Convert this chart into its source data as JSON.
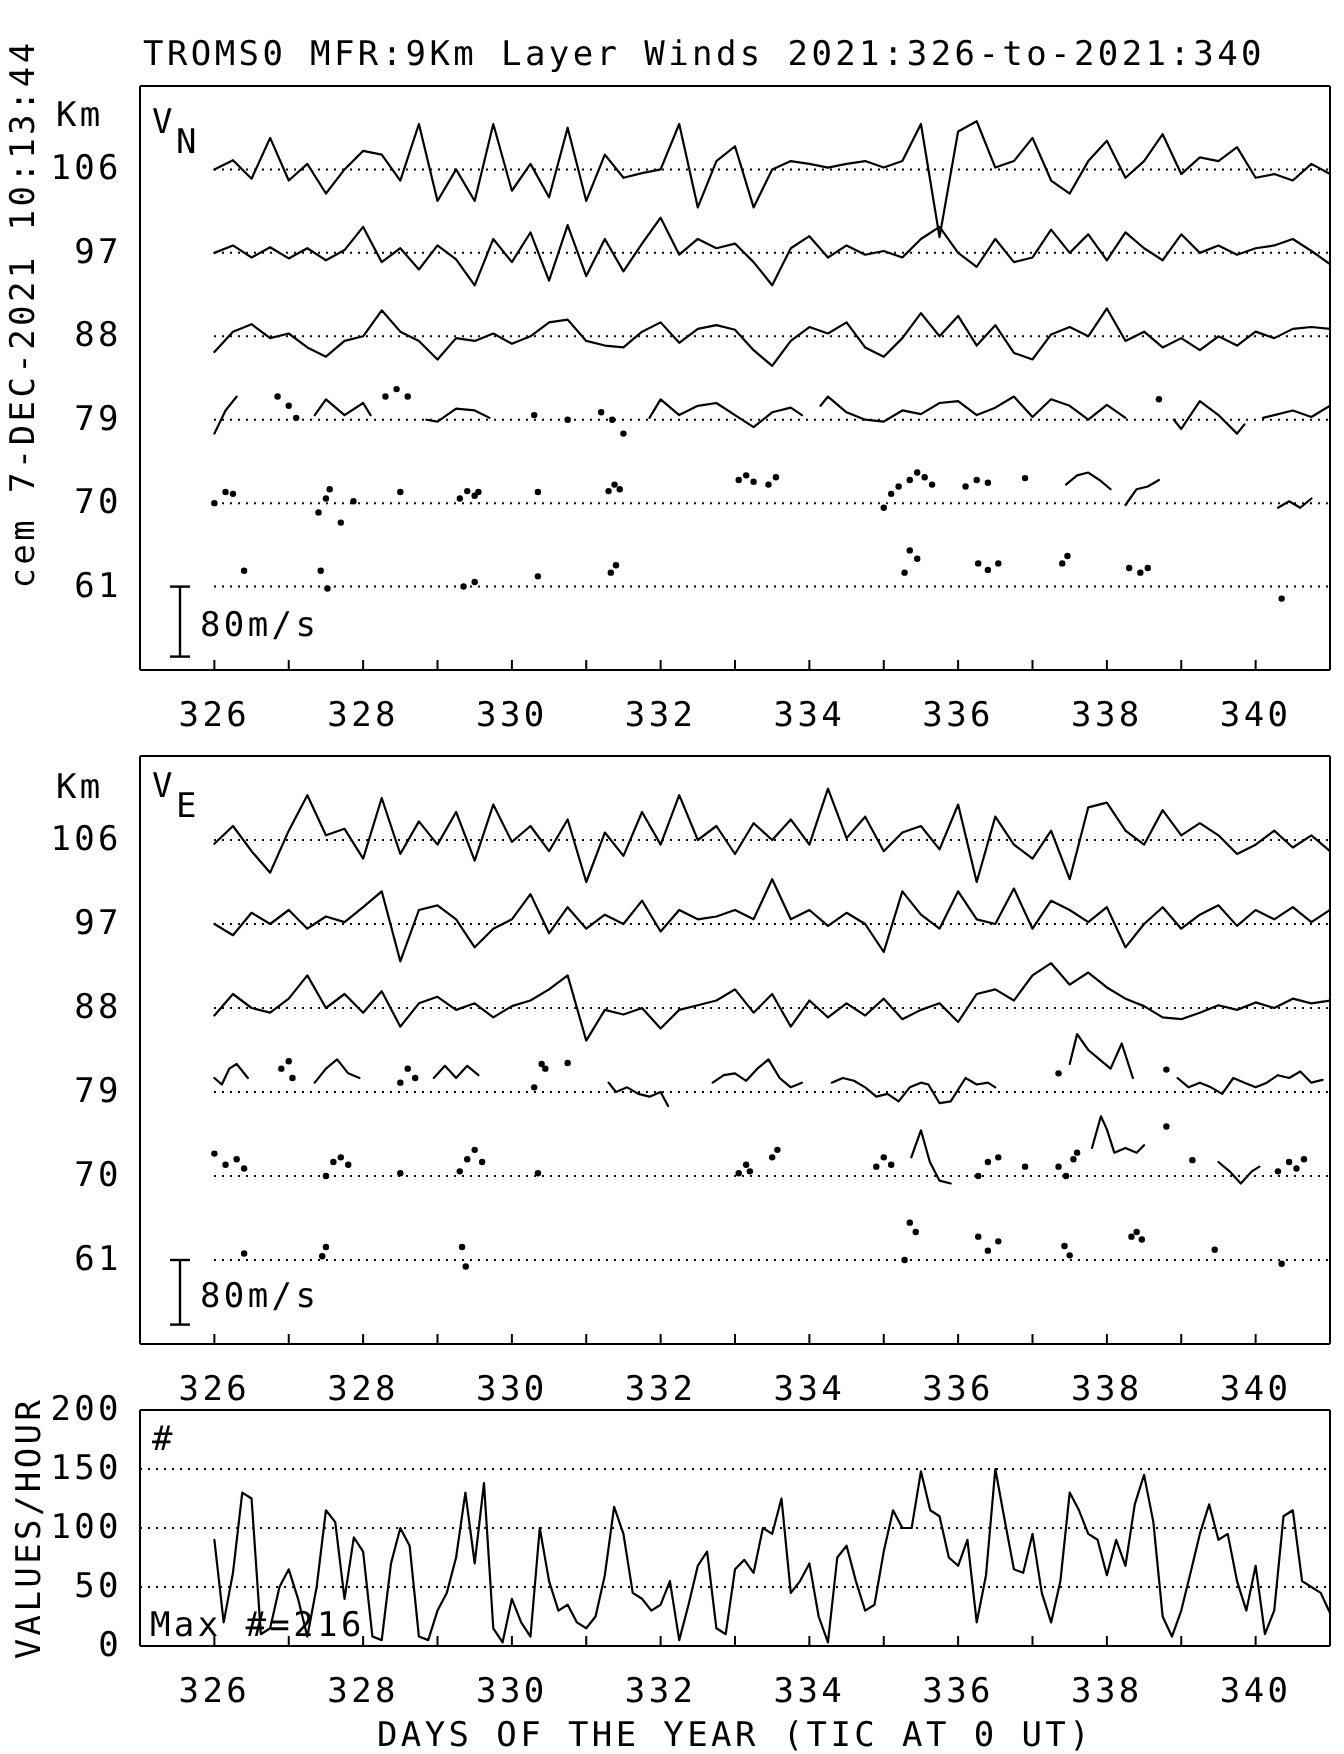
{
  "chart_data": [
    {
      "type": "line",
      "title": "TROMS0 MFR:9Km Layer Winds 2021:326-to-2021:340",
      "ylabel": "Km",
      "annotations": [
        "V$_{N}$",
        "80m/s",
        "cem 7-DEC-2021 10:13:44"
      ],
      "xlim": [
        325,
        341
      ],
      "xticks": [
        326,
        {
          "value": 327,
          "label": null
        },
        328,
        {
          "value": 329,
          "label": null
        },
        330,
        {
          "value": 331,
          "label": null
        },
        332,
        {
          "value": 333,
          "label": null
        },
        334,
        {
          "value": 335,
          "label": null
        },
        336,
        {
          "value": 337,
          "label": null
        },
        338,
        {
          "value": 339,
          "label": null
        },
        340
      ],
      "ylim": [
        52,
        115
      ],
      "yticks": [
        61,
        70,
        79,
        88,
        97,
        106
      ],
      "grid": "y",
      "series": [
        {
          "color": "#000000",
          "x": [
            326,
            326.25,
            326.5,
            326.75,
            327,
            327.25,
            327.5,
            327.75,
            328,
            328.25,
            328.5,
            328.75,
            329,
            329.25,
            329.5,
            329.75,
            330,
            330.25,
            330.5,
            330.75,
            331,
            331.25,
            331.5,
            331.75,
            332,
            332.25,
            332.5,
            332.75,
            333,
            333.25,
            333.5,
            333.75,
            334,
            334.25,
            334.5,
            334.75,
            335,
            335.25,
            335.5,
            335.75,
            336,
            336.25,
            336.5,
            336.75,
            337,
            337.25,
            337.5,
            337.75,
            338,
            338.25,
            338.5,
            338.75,
            339,
            339.25,
            339.5,
            339.75,
            340,
            340.25,
            340.5,
            340.75,
            341
          ],
          "values": [
            106.0,
            107.0,
            105.0,
            109.4,
            104.8,
            106.6,
            103.4,
            106.0,
            108.0,
            107.6,
            104.8,
            110.9,
            102.6,
            106.0,
            102.6,
            110.9,
            103.7,
            106.6,
            103.0,
            110.5,
            102.6,
            107.6,
            105.1,
            105.6,
            106.0,
            110.9,
            101.9,
            106.9,
            108.5,
            101.9,
            106.0,
            106.9,
            106.6,
            106.2,
            106.6,
            106.9,
            106.2,
            106.9,
            110.9,
            98.7,
            110.1,
            111.2,
            106.2,
            106.9,
            109.4,
            104.8,
            103.4,
            106.9,
            109.1,
            105.1,
            106.9,
            109.8,
            105.5,
            107.3,
            106.9,
            108.4,
            105.1,
            105.5,
            104.8,
            106.6,
            105.5
          ]
        },
        {
          "color": "#000000",
          "x": [
            326,
            326.25,
            326.5,
            326.75,
            327,
            327.25,
            327.5,
            327.75,
            328,
            328.25,
            328.5,
            328.75,
            329,
            329.25,
            329.5,
            329.75,
            330,
            330.25,
            330.5,
            330.75,
            331,
            331.25,
            331.5,
            331.75,
            332,
            332.25,
            332.5,
            332.75,
            333,
            333.25,
            333.5,
            333.75,
            334,
            334.25,
            334.5,
            334.75,
            335,
            335.25,
            335.5,
            335.75,
            336,
            336.25,
            336.5,
            336.75,
            337,
            337.25,
            337.5,
            337.75,
            338,
            338.25,
            338.5,
            338.75,
            339,
            339.25,
            339.5,
            339.75,
            340,
            340.25,
            340.5,
            340.75,
            341
          ],
          "values": [
            97.0,
            97.8,
            96.5,
            97.6,
            96.4,
            97.5,
            96.2,
            97.3,
            99.8,
            96.0,
            97.5,
            95.2,
            97.8,
            96.3,
            93.5,
            98.5,
            96.0,
            99.2,
            94.0,
            100.0,
            94.5,
            98.5,
            95.0,
            98.0,
            100.8,
            96.8,
            98.5,
            97.5,
            98.0,
            96.0,
            93.5,
            97.5,
            98.8,
            96.5,
            97.8,
            96.8,
            97.2,
            96.5,
            98.5,
            99.8,
            97.0,
            95.5,
            98.5,
            96.0,
            96.5,
            99.5,
            97.0,
            99.0,
            96.2,
            99.2,
            97.5,
            96.2,
            99.0,
            97.0,
            97.8,
            96.8,
            97.5,
            97.8,
            98.5,
            97.2,
            95.8
          ]
        },
        {
          "color": "#000000",
          "x": [
            326,
            326.25,
            326.5,
            326.75,
            327,
            327.25,
            327.5,
            327.75,
            328,
            328.25,
            328.5,
            328.75,
            329,
            329.25,
            329.5,
            329.75,
            330,
            330.25,
            330.5,
            330.75,
            331,
            331.25,
            331.5,
            331.75,
            332,
            332.25,
            332.5,
            332.75,
            333,
            333.25,
            333.5,
            333.75,
            334,
            334.25,
            334.5,
            334.75,
            335,
            335.25,
            335.5,
            335.75,
            336,
            336.25,
            336.5,
            336.75,
            337,
            337.25,
            337.5,
            337.75,
            338,
            338.25,
            338.5,
            338.75,
            339,
            339.25,
            339.5,
            339.75,
            340,
            340.25,
            340.5,
            340.75,
            341
          ],
          "values": [
            86.3,
            88.5,
            89.3,
            87.8,
            88.3,
            86.8,
            85.8,
            87.5,
            88.0,
            90.8,
            88.5,
            87.5,
            85.5,
            87.8,
            87.5,
            88.3,
            87.2,
            88.0,
            89.5,
            89.8,
            87.5,
            87.0,
            86.8,
            88.5,
            89.5,
            87.3,
            88.8,
            89.2,
            88.7,
            86.5,
            84.8,
            87.5,
            89.0,
            88.3,
            89.5,
            86.8,
            85.8,
            87.8,
            90.5,
            88.0,
            90.2,
            87.0,
            89.2,
            86.2,
            85.5,
            88.2,
            89.0,
            88.0,
            91.0,
            87.5,
            88.5,
            86.8,
            87.8,
            86.5,
            88.0,
            87.0,
            88.5,
            87.8,
            88.8,
            89.0,
            88.8
          ]
        },
        {
          "color": "#000000",
          "x": [
            326.0,
            326.15,
            326.3,
            326.5,
            327.35,
            327.5,
            327.75,
            328.0,
            328.1,
            328.2,
            328.85,
            329.0,
            329.25,
            329.5,
            329.7,
            329.9,
            331.85,
            332.0,
            332.25,
            332.5,
            332.75,
            333.0,
            333.25,
            333.5,
            333.75,
            333.9,
            334.0,
            334.15,
            334.25,
            334.5,
            334.75,
            335.0,
            335.25,
            335.5,
            335.75,
            336.0,
            336.25,
            336.5,
            336.75,
            337.0,
            337.25,
            337.5,
            337.75,
            338.0,
            338.25,
            338.5,
            338.9,
            339.0,
            339.25,
            339.5,
            339.75,
            339.85,
            340.0,
            340.1,
            340.25,
            340.5,
            340.75,
            341.0
          ],
          "values": [
            77.5,
            80.0,
            81.5,
            null,
            79.5,
            81.2,
            79.5,
            80.8,
            79.5,
            null,
            79.0,
            78.8,
            80.2,
            80.0,
            79.2,
            null,
            79.2,
            81.2,
            79.5,
            80.5,
            80.8,
            79.5,
            78.2,
            79.8,
            80.3,
            79.5,
            null,
            80.5,
            81.5,
            79.8,
            79.0,
            78.8,
            80.0,
            79.6,
            80.8,
            81.0,
            79.5,
            80.3,
            81.5,
            79.3,
            81.2,
            80.5,
            79.0,
            80.6,
            79.2,
            null,
            79.0,
            78.0,
            81.0,
            79.5,
            77.5,
            78.5,
            null,
            79.2,
            79.5,
            80.0,
            79.3,
            80.5
          ]
        },
        {
          "color": "#000000",
          "x": [
            337.45,
            337.6,
            337.75,
            337.9,
            338.05,
            338.15,
            338.25,
            338.4,
            338.55,
            338.7,
            338.9,
            340.3,
            340.45,
            340.6,
            340.75
          ],
          "values": [
            72.0,
            73.0,
            73.3,
            72.5,
            71.5,
            null,
            69.8,
            71.5,
            71.8,
            72.5,
            null,
            69.5,
            70.2,
            69.5,
            70.5
          ]
        },
        {
          "type": "scatter",
          "marker": "circle",
          "color": "#000000",
          "x": [
            326.85,
            327.0,
            327.1,
            328.3,
            328.45,
            328.6,
            330.3,
            330.75,
            331.2,
            331.35,
            331.5,
            338.7,
            326.0,
            326.15,
            326.25,
            327.4,
            327.5,
            327.55,
            327.7,
            327.87,
            328.5,
            329.3,
            329.4,
            329.5,
            329.55,
            330.35,
            331.3,
            331.38,
            331.45,
            333.05,
            333.15,
            333.25,
            333.45,
            333.55,
            335.0,
            335.1,
            335.2,
            335.35,
            335.45,
            335.55,
            335.65,
            336.1,
            336.25,
            336.4,
            336.9,
            326.4,
            327.43,
            327.52,
            329.35,
            329.5,
            330.35,
            331.33,
            331.4,
            335.28,
            335.35,
            335.45,
            336.27,
            336.4,
            336.54,
            337.4,
            337.47,
            338.3,
            338.45,
            338.55,
            340.35
          ],
          "values": [
            81.5,
            80.5,
            79.2,
            81.5,
            82.3,
            81.5,
            79.5,
            79.0,
            79.8,
            79.0,
            77.5,
            81.2,
            70.0,
            71.2,
            71.0,
            69.0,
            70.5,
            71.5,
            67.9,
            70.2,
            71.2,
            70.5,
            71.3,
            70.8,
            71.2,
            71.2,
            71.3,
            72.0,
            71.5,
            72.5,
            73.0,
            72.3,
            72.0,
            72.8,
            69.5,
            71.0,
            71.8,
            72.5,
            73.3,
            72.8,
            72.0,
            71.8,
            72.5,
            72.2,
            72.7,
            62.7,
            62.7,
            60.8,
            61.0,
            61.5,
            62.1,
            62.5,
            63.3,
            62.5,
            64.9,
            64.0,
            63.5,
            62.8,
            63.5,
            63.5,
            64.3,
            63.0,
            62.5,
            63.0,
            59.7
          ]
        }
      ]
    },
    {
      "type": "line",
      "ylabel": "Km",
      "annotations": [
        "V$_{E}$",
        "80m/s"
      ],
      "xlim": [
        325,
        341
      ],
      "xticks": [
        326,
        {
          "value": 327,
          "label": null
        },
        328,
        {
          "value": 329,
          "label": null
        },
        330,
        {
          "value": 331,
          "label": null
        },
        332,
        {
          "value": 333,
          "label": null
        },
        334,
        {
          "value": 335,
          "label": null
        },
        336,
        {
          "value": 337,
          "label": null
        },
        338,
        {
          "value": 339,
          "label": null
        },
        340
      ],
      "ylim": [
        52,
        115
      ],
      "yticks": [
        61,
        70,
        79,
        88,
        97,
        106
      ],
      "grid": "y",
      "series": [
        {
          "color": "#000000",
          "x": [
            326,
            326.25,
            326.5,
            326.75,
            327,
            327.25,
            327.5,
            327.75,
            328,
            328.25,
            328.5,
            328.75,
            329,
            329.25,
            329.5,
            329.75,
            330,
            330.25,
            330.5,
            330.75,
            331,
            331.25,
            331.5,
            331.75,
            332,
            332.25,
            332.5,
            332.75,
            333,
            333.25,
            333.5,
            333.75,
            334,
            334.25,
            334.5,
            334.75,
            335,
            335.25,
            335.5,
            335.75,
            336,
            336.25,
            336.5,
            336.75,
            337,
            337.25,
            337.5,
            337.75,
            338,
            338.25,
            338.5,
            338.75,
            339,
            339.25,
            339.5,
            339.75,
            340,
            340.25,
            340.5,
            340.75,
            341
          ],
          "values": [
            105.6,
            107.5,
            104.8,
            102.5,
            107.0,
            110.8,
            106.5,
            107.2,
            104.0,
            110.5,
            104.5,
            108.0,
            105.5,
            109.0,
            103.8,
            109.8,
            105.8,
            107.5,
            104.8,
            108.2,
            101.5,
            106.8,
            104.3,
            109.0,
            105.5,
            110.8,
            106.0,
            107.5,
            104.5,
            107.8,
            106.0,
            108.2,
            105.5,
            111.5,
            106.2,
            108.5,
            104.8,
            106.8,
            107.5,
            105.0,
            109.8,
            101.5,
            108.5,
            105.5,
            104.0,
            107.0,
            101.8,
            109.5,
            110.0,
            107.0,
            105.5,
            109.2,
            106.5,
            107.8,
            106.5,
            104.5,
            105.5,
            107.0,
            105.2,
            106.5,
            104.8
          ]
        },
        {
          "color": "#000000",
          "x": [
            326,
            326.25,
            326.5,
            326.75,
            327,
            327.25,
            327.5,
            327.75,
            328,
            328.25,
            328.5,
            328.75,
            329,
            329.25,
            329.5,
            329.75,
            330,
            330.25,
            330.5,
            330.75,
            331,
            331.25,
            331.5,
            331.75,
            332,
            332.25,
            332.5,
            332.75,
            333,
            333.25,
            333.5,
            333.75,
            334,
            334.25,
            334.5,
            334.75,
            335,
            335.25,
            335.5,
            335.75,
            336,
            336.25,
            336.5,
            336.75,
            337,
            337.25,
            337.5,
            337.75,
            338,
            338.25,
            338.5,
            338.75,
            339,
            339.25,
            339.5,
            339.75,
            340,
            340.25,
            340.5,
            340.75,
            341
          ],
          "values": [
            97.0,
            95.8,
            98.2,
            97.0,
            98.5,
            96.5,
            97.8,
            97.2,
            98.8,
            100.5,
            93.0,
            98.5,
            99.0,
            97.5,
            94.5,
            96.5,
            97.5,
            100.2,
            96.0,
            98.8,
            96.5,
            98.0,
            97.0,
            99.5,
            96.2,
            98.5,
            97.5,
            97.8,
            98.5,
            97.5,
            101.8,
            97.5,
            98.5,
            96.8,
            98.2,
            97.0,
            94.0,
            100.5,
            98.0,
            96.5,
            100.5,
            97.5,
            97.0,
            100.8,
            96.5,
            99.5,
            98.5,
            97.2,
            98.8,
            94.5,
            97.0,
            98.8,
            96.5,
            98.0,
            99.0,
            96.8,
            98.5,
            97.5,
            98.8,
            97.2,
            98.5
          ]
        },
        {
          "color": "#000000",
          "x": [
            326,
            326.25,
            326.5,
            326.75,
            327,
            327.25,
            327.5,
            327.75,
            328,
            328.25,
            328.5,
            328.75,
            329,
            329.25,
            329.5,
            329.75,
            330,
            330.25,
            330.5,
            330.75,
            331,
            331.25,
            331.5,
            331.75,
            332,
            332.25,
            332.5,
            332.75,
            333,
            333.25,
            333.5,
            333.75,
            334,
            334.25,
            334.5,
            334.75,
            335,
            335.25,
            335.5,
            335.75,
            336,
            336.25,
            336.5,
            336.75,
            337,
            337.25,
            337.5,
            337.75,
            338,
            338.25,
            338.5,
            338.75,
            339,
            339.25,
            339.5,
            339.75,
            340,
            340.25,
            340.5,
            340.75,
            341
          ],
          "values": [
            87.2,
            89.5,
            88.0,
            87.5,
            89.0,
            91.5,
            88.0,
            89.5,
            87.5,
            89.8,
            86.0,
            88.5,
            89.2,
            87.8,
            88.5,
            87.0,
            88.2,
            88.8,
            90.0,
            91.5,
            84.5,
            87.8,
            87.3,
            88.0,
            85.8,
            87.8,
            88.3,
            88.8,
            90.0,
            87.5,
            89.5,
            86.0,
            88.8,
            87.0,
            88.5,
            87.2,
            89.0,
            86.8,
            87.8,
            88.5,
            86.5,
            89.5,
            90.0,
            88.8,
            91.5,
            92.8,
            90.5,
            91.8,
            90.2,
            89.0,
            88.2,
            87.0,
            86.8,
            87.5,
            88.3,
            87.8,
            88.6,
            88.0,
            89.0,
            88.5,
            88.8
          ]
        },
        {
          "color": "#000000",
          "x": [
            326.0,
            326.1,
            326.2,
            326.3,
            326.45,
            326.6,
            327.35,
            327.5,
            327.65,
            327.8,
            327.95,
            328.1,
            328.95,
            329.1,
            329.25,
            329.4,
            329.55,
            329.8,
            331.3,
            331.4,
            331.55,
            331.7,
            331.85,
            332.0,
            332.1,
            332.25,
            332.7,
            332.85,
            333.0,
            333.15,
            333.3,
            333.45,
            333.6,
            333.75,
            333.9,
            334.05,
            334.3,
            334.45,
            334.6,
            334.75,
            334.9,
            335.05,
            335.2,
            335.35,
            335.5,
            335.6,
            335.75,
            335.9,
            336.1,
            336.25,
            336.4,
            336.5,
            336.65,
            337.5,
            337.6,
            337.75,
            337.9,
            338.05,
            338.2,
            338.35,
            338.45,
            338.95,
            339.1,
            339.25,
            339.4,
            339.55,
            339.7,
            339.85,
            340.0,
            340.15,
            340.3,
            340.45,
            340.6,
            340.75,
            340.9
          ],
          "values": [
            80.5,
            79.8,
            81.5,
            82.0,
            80.5,
            null,
            80.0,
            81.5,
            82.5,
            81.0,
            80.5,
            null,
            80.5,
            81.8,
            80.5,
            81.8,
            80.8,
            null,
            80.0,
            79.0,
            79.5,
            78.8,
            78.5,
            79.0,
            77.5,
            null,
            80.0,
            80.8,
            81.0,
            80.2,
            81.5,
            82.5,
            80.5,
            79.5,
            80.0,
            null,
            80.0,
            80.5,
            80.2,
            79.5,
            78.5,
            78.8,
            78.0,
            79.5,
            80.0,
            79.8,
            77.8,
            78.0,
            80.5,
            79.8,
            80.0,
            79.5,
            null,
            82.0,
            85.2,
            83.5,
            82.5,
            81.5,
            84.2,
            80.5,
            null,
            80.5,
            79.5,
            80.0,
            79.5,
            78.8,
            80.5,
            80.0,
            79.5,
            80.0,
            80.8,
            80.5,
            81.2,
            80.0,
            80.3
          ]
        },
        {
          "color": "#000000",
          "x": [
            335.37,
            335.5,
            335.62,
            335.75,
            335.9,
            336.05,
            337.8,
            337.92,
            338.0,
            338.1,
            338.25,
            338.4,
            338.5,
            338.65,
            339.5,
            339.65,
            339.8,
            339.95,
            340.05
          ],
          "values": [
            72.0,
            74.9,
            71.5,
            69.5,
            69.2,
            null,
            73.0,
            76.4,
            75.0,
            72.5,
            73.0,
            72.5,
            73.3,
            null,
            71.5,
            70.5,
            69.2,
            70.5,
            71.0
          ]
        },
        {
          "type": "scatter",
          "marker": "circle",
          "color": "#000000",
          "x": [
            326.9,
            327.0,
            327.05,
            328.5,
            328.6,
            328.7,
            330.3,
            330.4,
            330.45,
            330.75,
            337.35,
            338.8,
            326.0,
            326.15,
            326.3,
            326.4,
            327.5,
            327.6,
            327.7,
            327.8,
            328.5,
            329.3,
            329.4,
            329.5,
            329.6,
            330.35,
            333.05,
            333.15,
            333.2,
            333.5,
            333.57,
            334.9,
            335.0,
            335.1,
            336.27,
            336.4,
            336.54,
            336.9,
            337.35,
            337.45,
            337.55,
            337.6,
            338.8,
            339.15,
            340.3,
            340.45,
            340.55,
            340.65,
            326.4,
            327.45,
            327.5,
            329.33,
            329.38,
            335.28,
            335.35,
            335.43,
            336.27,
            336.4,
            336.54,
            337.43,
            337.5,
            338.33,
            338.4,
            338.47,
            339.45,
            340.35
          ],
          "values": [
            81.5,
            82.3,
            80.5,
            80.0,
            81.5,
            80.5,
            79.5,
            82.0,
            81.5,
            82.1,
            81.0,
            81.4,
            72.4,
            71.2,
            71.8,
            70.8,
            70.0,
            71.5,
            72.0,
            71.2,
            70.3,
            70.5,
            71.8,
            72.8,
            71.5,
            70.3,
            70.3,
            71.2,
            70.5,
            72.0,
            72.8,
            71.0,
            72.0,
            71.2,
            70.0,
            71.5,
            72.0,
            71.0,
            71.0,
            70.0,
            71.8,
            72.5,
            75.3,
            71.7,
            70.5,
            71.5,
            70.8,
            71.8,
            61.7,
            61.4,
            62.4,
            62.4,
            60.3,
            61.0,
            65.0,
            64.0,
            63.5,
            62.0,
            63.0,
            62.5,
            61.5,
            63.5,
            64.0,
            63.2,
            62.1,
            60.6
          ]
        }
      ]
    },
    {
      "type": "line",
      "xlabel": "DAYS OF THE YEAR (TIC AT 0 UT)",
      "ylabel": "VALUES/HOUR",
      "annotations": [
        "#",
        "Max #=216"
      ],
      "xlim": [
        325,
        341
      ],
      "xticks": [
        326,
        {
          "value": 327,
          "label": null
        },
        328,
        {
          "value": 329,
          "label": null
        },
        330,
        {
          "value": 331,
          "label": null
        },
        332,
        {
          "value": 333,
          "label": null
        },
        334,
        {
          "value": 335,
          "label": null
        },
        336,
        {
          "value": 337,
          "label": null
        },
        338,
        {
          "value": 339,
          "label": null
        },
        340
      ],
      "ylim": [
        0,
        200
      ],
      "yticks": [
        0,
        50,
        100,
        150,
        200
      ],
      "grid": "y",
      "series": [
        {
          "color": "#000000",
          "x": [
            326,
            326.125,
            326.25,
            326.375,
            326.5,
            326.625,
            326.75,
            326.875,
            327,
            327.125,
            327.25,
            327.375,
            327.5,
            327.625,
            327.75,
            327.875,
            328,
            328.125,
            328.25,
            328.375,
            328.5,
            328.625,
            328.75,
            328.875,
            329,
            329.125,
            329.25,
            329.375,
            329.5,
            329.625,
            329.75,
            329.875,
            330,
            330.125,
            330.25,
            330.375,
            330.5,
            330.625,
            330.75,
            330.875,
            331,
            331.125,
            331.25,
            331.375,
            331.5,
            331.625,
            331.75,
            331.875,
            332,
            332.125,
            332.25,
            332.375,
            332.5,
            332.625,
            332.75,
            332.875,
            333,
            333.125,
            333.25,
            333.375,
            333.5,
            333.625,
            333.75,
            333.875,
            334,
            334.125,
            334.25,
            334.375,
            334.5,
            334.625,
            334.75,
            334.875,
            335,
            335.125,
            335.25,
            335.375,
            335.5,
            335.625,
            335.75,
            335.875,
            336,
            336.125,
            336.25,
            336.375,
            336.5,
            336.625,
            336.75,
            336.875,
            337,
            337.125,
            337.25,
            337.375,
            337.5,
            337.625,
            337.75,
            337.875,
            338,
            338.125,
            338.25,
            338.375,
            338.5,
            338.625,
            338.75,
            338.875,
            339,
            339.125,
            339.25,
            339.375,
            339.5,
            339.625,
            339.75,
            339.875,
            340,
            340.125,
            340.25,
            340.375,
            340.5,
            340.625,
            340.75,
            340.875,
            341
          ],
          "values": [
            90,
            20,
            62,
            130,
            125,
            10,
            15,
            50,
            65,
            40,
            8,
            50,
            115,
            105,
            40,
            92,
            80,
            8,
            5,
            70,
            100,
            85,
            8,
            5,
            30,
            45,
            75,
            130,
            70,
            138,
            15,
            3,
            40,
            20,
            8,
            100,
            55,
            30,
            35,
            20,
            15,
            25,
            60,
            118,
            95,
            45,
            40,
            30,
            35,
            55,
            5,
            35,
            68,
            80,
            15,
            10,
            65,
            73,
            62,
            100,
            95,
            125,
            45,
            55,
            70,
            25,
            3,
            75,
            85,
            55,
            30,
            35,
            80,
            115,
            100,
            100,
            148,
            115,
            110,
            75,
            68,
            90,
            20,
            60,
            150,
            107,
            65,
            62,
            95,
            45,
            20,
            55,
            130,
            115,
            95,
            90,
            60,
            90,
            68,
            120,
            145,
            105,
            25,
            8,
            30,
            62,
            95,
            120,
            90,
            95,
            55,
            30,
            68,
            10,
            30,
            110,
            115,
            55,
            50,
            45,
            28
          ]
        }
      ]
    }
  ]
}
